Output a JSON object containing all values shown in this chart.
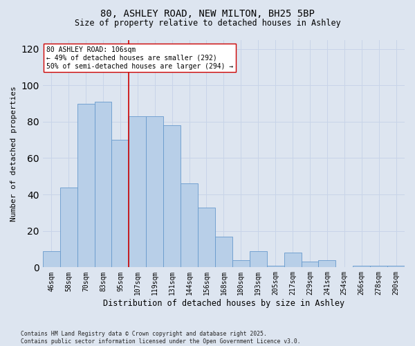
{
  "title_line1": "80, ASHLEY ROAD, NEW MILTON, BH25 5BP",
  "title_line2": "Size of property relative to detached houses in Ashley",
  "xlabel": "Distribution of detached houses by size in Ashley",
  "ylabel": "Number of detached properties",
  "categories": [
    "46sqm",
    "58sqm",
    "70sqm",
    "83sqm",
    "95sqm",
    "107sqm",
    "119sqm",
    "131sqm",
    "144sqm",
    "156sqm",
    "168sqm",
    "180sqm",
    "193sqm",
    "205sqm",
    "217sqm",
    "229sqm",
    "241sqm",
    "254sqm",
    "266sqm",
    "278sqm",
    "290sqm"
  ],
  "values": [
    9,
    44,
    90,
    91,
    70,
    83,
    83,
    78,
    46,
    33,
    17,
    4,
    9,
    1,
    8,
    3,
    4,
    0,
    1,
    1,
    1
  ],
  "bar_color": "#b8cfe8",
  "bar_edge_color": "#6699cc",
  "vline_color": "#cc0000",
  "annotation_text": "80 ASHLEY ROAD: 106sqm\n← 49% of detached houses are smaller (292)\n50% of semi-detached houses are larger (294) →",
  "annotation_box_color": "#ffffff",
  "annotation_box_edge": "#cc0000",
  "ylim": [
    0,
    125
  ],
  "yticks": [
    0,
    20,
    40,
    60,
    80,
    100,
    120
  ],
  "grid_color": "#c8d4e8",
  "bg_color": "#dde5f0",
  "footer": "Contains HM Land Registry data © Crown copyright and database right 2025.\nContains public sector information licensed under the Open Government Licence v3.0.",
  "title_fontsize": 10,
  "subtitle_fontsize": 8.5,
  "ylabel_fontsize": 8,
  "xlabel_fontsize": 8.5,
  "tick_fontsize": 7,
  "footer_fontsize": 5.8,
  "annot_fontsize": 7
}
